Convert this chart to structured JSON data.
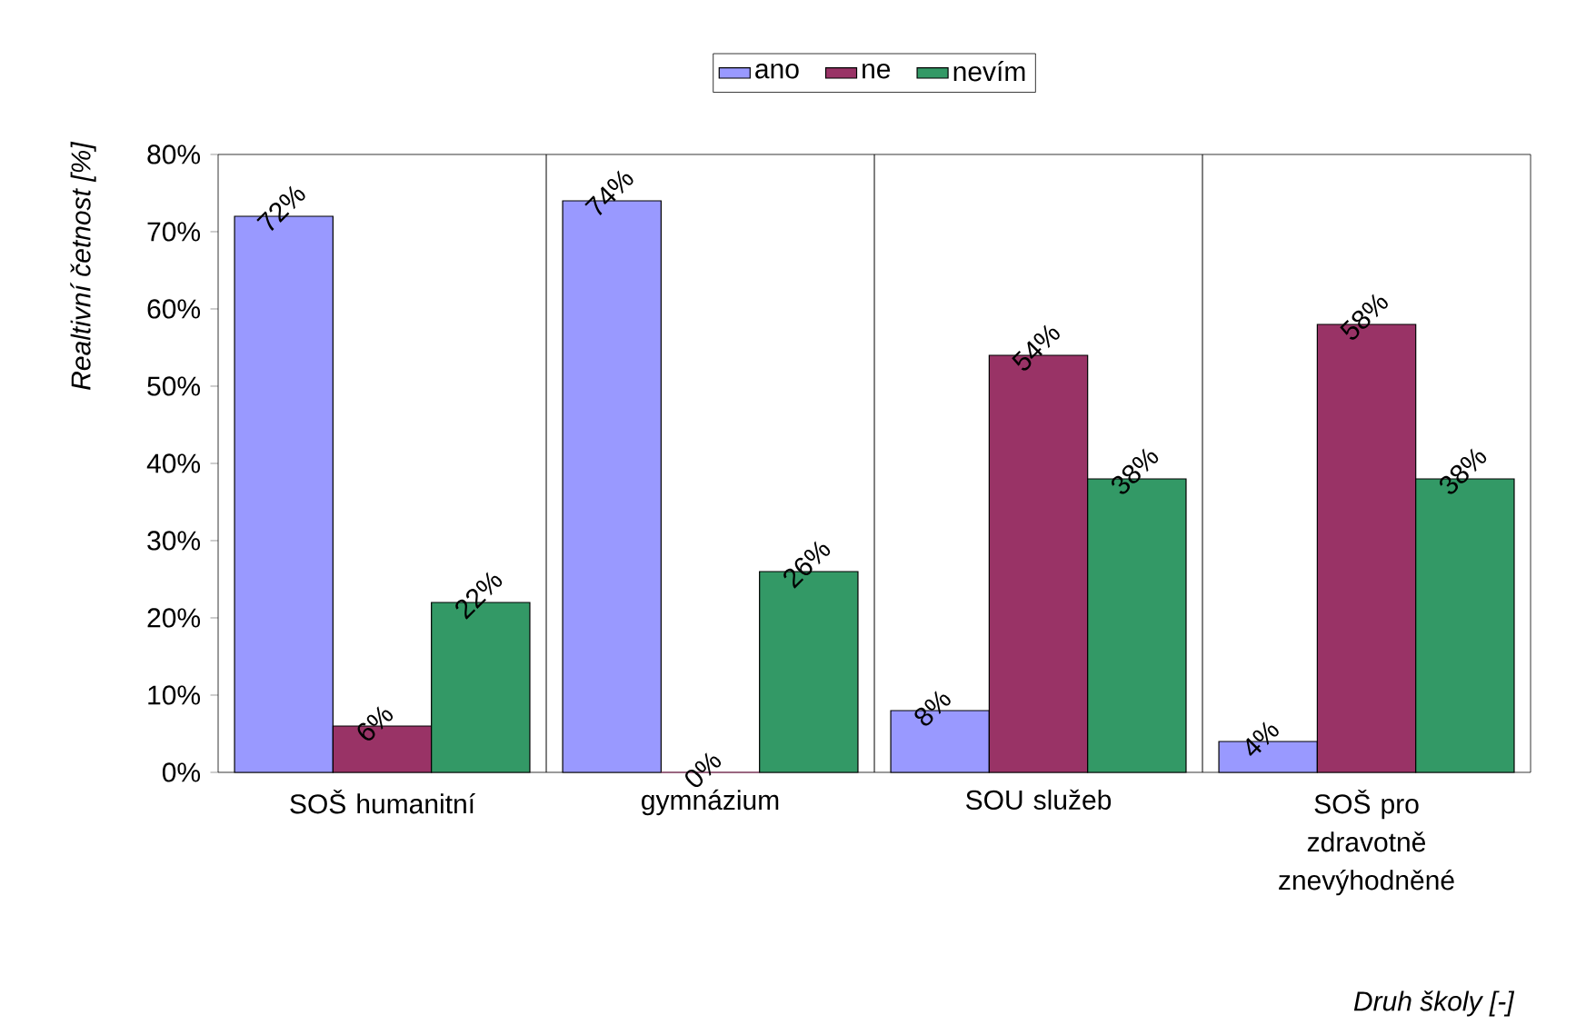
{
  "chart_data": {
    "type": "bar",
    "categories": [
      "SOŠ humanitní",
      "gymnázium",
      "SOU služeb",
      "SOŠ pro zdravotně znevýhodněné"
    ],
    "series": [
      {
        "name": "ano",
        "color": "#9999ff",
        "values": [
          72,
          74,
          8,
          4
        ],
        "value_labels": [
          "72%",
          "74%",
          "8%",
          "4%"
        ]
      },
      {
        "name": "ne",
        "color": "#993366",
        "values": [
          6,
          0,
          54,
          58
        ],
        "value_labels": [
          "6%",
          "0%",
          "54%",
          "58%"
        ]
      },
      {
        "name": "nevím",
        "color": "#339966",
        "values": [
          22,
          26,
          38,
          38
        ],
        "value_labels": [
          "22%",
          "26%",
          "38%",
          "38%"
        ]
      }
    ],
    "xlabel": "Druh školy [-]",
    "ylabel": "Realtivní četnost [%]",
    "ylim": [
      0,
      80
    ],
    "yticks": [
      {
        "value": 0,
        "label": "0%"
      },
      {
        "value": 10,
        "label": "10%"
      },
      {
        "value": 20,
        "label": "20%"
      },
      {
        "value": 30,
        "label": "30%"
      },
      {
        "value": 40,
        "label": "40%"
      },
      {
        "value": 50,
        "label": "50%"
      },
      {
        "value": 60,
        "label": "60%"
      },
      {
        "value": 70,
        "label": "70%"
      },
      {
        "value": 80,
        "label": "80%"
      }
    ],
    "grid": "x",
    "legend": "top"
  }
}
